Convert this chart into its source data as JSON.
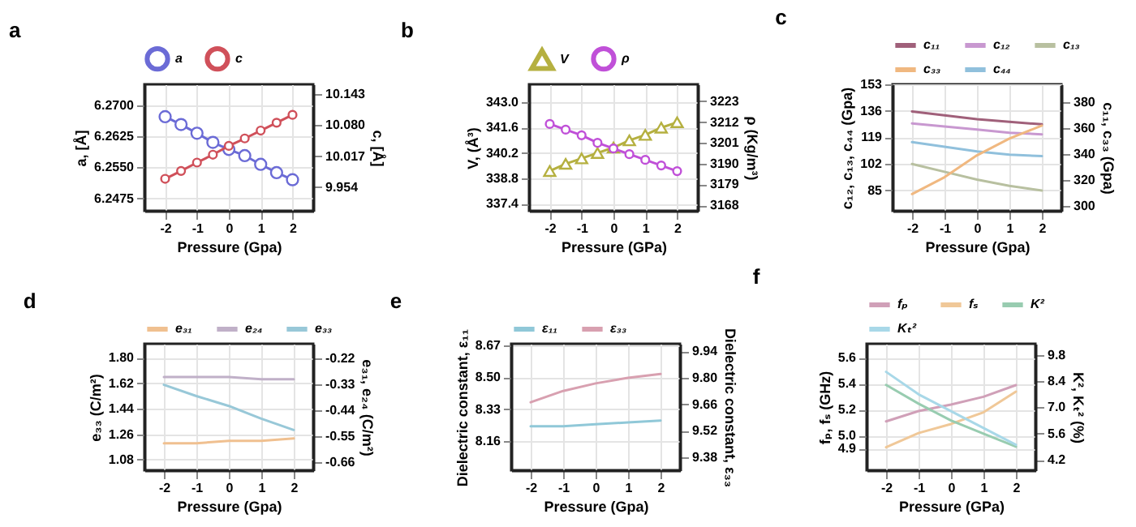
{
  "chart_data": [
    {
      "type": "line",
      "title": "a",
      "xlabel": "Pressure (Gpa)",
      "ylabel": "a, [Å]",
      "y2label": "c, [Å]",
      "x": [
        -2,
        -1.5,
        -1,
        -0.5,
        0,
        0.5,
        1,
        1.5,
        2
      ],
      "xlim": [
        -2.65,
        2.65
      ],
      "xticks": [
        -2,
        -1,
        0,
        1,
        2
      ],
      "ylim": [
        6.2445,
        6.275
      ],
      "yticks": [
        6.2475,
        {
          "value": 6.255,
          "label": "6.2550"
        },
        6.2625,
        {
          "value": 6.27,
          "label": "6.2700"
        }
      ],
      "y2lim": [
        9.906,
        10.163
      ],
      "y2ticks": [
        9.954,
        10.017,
        {
          "value": 10.08,
          "label": "10.080"
        },
        10.143
      ],
      "grid": true,
      "legend": "top",
      "series": [
        {
          "name": "a",
          "color": "#6b6bd6",
          "marker": "circle",
          "values": [
            6.2672,
            6.2653,
            6.2632,
            6.261,
            6.2593,
            6.2578,
            6.2557,
            6.2537,
            6.252
          ]
        },
        {
          "name": "c",
          "color": "#d0505a",
          "marker": "circle",
          "axis": "y2",
          "values": [
            9.971,
            9.987,
            10.004,
            10.02,
            10.038,
            10.053,
            10.069,
            10.085,
            10.101
          ]
        }
      ]
    },
    {
      "type": "line",
      "title": "b",
      "xlabel": "Pressure (GPa)",
      "ylabel": "V, (Å³)",
      "y2label": "ρ (Kg/m³)",
      "x": [
        -2,
        -1.5,
        -1,
        -0.5,
        0,
        0.5,
        1,
        1.5,
        2
      ],
      "xlim": [
        -2.65,
        2.65
      ],
      "xticks": [
        -2,
        -1,
        0,
        1,
        2
      ],
      "ylim": [
        337.0,
        344.0
      ],
      "yticks": [
        337.4,
        338.8,
        340.2,
        341.6,
        {
          "value": 343,
          "label": "343.0"
        }
      ],
      "y2lim": [
        3165,
        3232
      ],
      "y2ticks": [
        3168,
        3179,
        3190,
        3201,
        3212,
        3223
      ],
      "grid": true,
      "legend": "top",
      "series": [
        {
          "name": "V",
          "color": "#b5b040",
          "marker": "triangle",
          "values": [
            339.2,
            339.6,
            339.9,
            340.2,
            340.5,
            340.9,
            341.2,
            341.6,
            341.9
          ]
        },
        {
          "name": "ρ",
          "color": "#c050d8",
          "marker": "circle",
          "axis": "y2",
          "values": [
            3211,
            3208,
            3205,
            3201,
            3198,
            3195,
            3192,
            3189,
            3186
          ]
        }
      ]
    },
    {
      "type": "line",
      "title": "c",
      "xlabel": "Pressure (Gpa)",
      "ylabel": "c₁₂, c₁₃, c₄₄ (Gpa)",
      "y2label": "c₁₁, c₃₃ (Gpa)",
      "x": [
        -2,
        -1,
        0,
        1,
        2
      ],
      "xlim": [
        -2.6,
        2.6
      ],
      "xticks": [
        -2,
        -1,
        0,
        1,
        2
      ],
      "ylim": [
        72,
        153
      ],
      "yticks": [
        85,
        102,
        119,
        136,
        153
      ],
      "y2lim": [
        296,
        394
      ],
      "y2ticks": [
        300,
        320,
        340,
        360,
        380
      ],
      "grid": true,
      "legend": "top",
      "series": [
        {
          "name": "c₁₁",
          "color": "#a0607a",
          "axis": "y2",
          "values": [
            373,
            370,
            367,
            365,
            363
          ]
        },
        {
          "name": "c₁₂",
          "color": "#c898d0",
          "values": [
            128,
            126,
            124,
            122,
            121
          ]
        },
        {
          "name": "c₁₃",
          "color": "#b8c0a0",
          "values": [
            102,
            97,
            92,
            88,
            85
          ]
        },
        {
          "name": "c₃₃",
          "color": "#f0b880",
          "axis": "y2",
          "values": [
            309,
            322,
            339,
            352,
            362
          ]
        },
        {
          "name": "c₄₄",
          "color": "#90c0dc",
          "values": [
            116,
            113,
            110,
            108,
            107
          ]
        }
      ]
    },
    {
      "type": "line",
      "title": "d",
      "xlabel": "Pressure (Gpa)",
      "ylabel": "e₃₃ (C/m²)",
      "y2label": "e₃₁, e₂₄ (C/m²)",
      "x": [
        -2,
        -1,
        0,
        1,
        2
      ],
      "xlim": [
        -2.6,
        2.6
      ],
      "xticks": [
        -2,
        -1,
        0,
        1,
        2
      ],
      "ylim": [
        1.005,
        1.9
      ],
      "yticks": [
        1.08,
        1.26,
        1.44,
        1.62,
        {
          "value": 1.8,
          "label": "1.80"
        }
      ],
      "y2lim": [
        -0.694,
        -0.16
      ],
      "y2ticks": [
        -0.66,
        -0.55,
        -0.44,
        -0.33,
        -0.22
      ],
      "grid": true,
      "legend": "top",
      "series": [
        {
          "name": "e₃₁",
          "color": "#f0c090",
          "axis": "y2",
          "values": [
            -0.58,
            -0.58,
            -0.57,
            -0.57,
            -0.56
          ]
        },
        {
          "name": "e₂₄",
          "color": "#c0b0c8",
          "axis": "y2",
          "values": [
            -0.3,
            -0.3,
            -0.3,
            -0.31,
            -0.31
          ]
        },
        {
          "name": "e₃₃",
          "color": "#98c8d8",
          "values": [
            1.61,
            1.53,
            1.46,
            1.37,
            1.29
          ]
        }
      ]
    },
    {
      "type": "line",
      "title": "e",
      "xlabel": "Pressure (Gpa)",
      "ylabel": "Dielectric constant, ε₁₁",
      "y2label": "Dielectric constant, ε₃₃",
      "x": [
        -2,
        -1,
        0,
        1,
        2
      ],
      "xlim": [
        -2.6,
        2.6
      ],
      "xticks": [
        -2,
        -1,
        0,
        1,
        2
      ],
      "ylim": [
        8.006,
        8.678
      ],
      "yticks": [
        8.16,
        8.33,
        {
          "value": 8.5,
          "label": "8.50"
        },
        8.67
      ],
      "y2lim": [
        9.31,
        9.98
      ],
      "y2ticks": [
        9.38,
        9.52,
        9.66,
        {
          "value": 9.8,
          "label": "9.80"
        },
        9.94
      ],
      "grid": true,
      "legend": "top",
      "series": [
        {
          "name": "ε₁₁",
          "color": "#90c8d8",
          "values": [
            8.24,
            8.24,
            8.25,
            8.26,
            8.27
          ]
        },
        {
          "name": "ε₃₃",
          "color": "#d8a0b0",
          "axis": "y2",
          "values": [
            9.67,
            9.73,
            9.77,
            9.8,
            9.82
          ]
        }
      ]
    },
    {
      "type": "line",
      "title": "f",
      "xlabel": "Pressure (GPa)",
      "ylabel": "fₚ, fₛ (GHz)",
      "y2label": "K², Kₜ² (%)",
      "x": [
        -2,
        -1,
        0,
        1,
        2
      ],
      "xlim": [
        -2.6,
        2.6
      ],
      "xticks": [
        -2,
        -1,
        0,
        1,
        2
      ],
      "ylim": [
        4.733,
        5.709
      ],
      "yticks": [
        4.9,
        {
          "value": 5,
          "label": "5.0"
        },
        5.2,
        5.4,
        5.6
      ],
      "y2lim": [
        3.64,
        10.4
      ],
      "y2ticks": [
        4.2,
        5.6,
        {
          "value": 7,
          "label": "7.0"
        },
        8.4,
        9.8
      ],
      "grid": true,
      "legend": "top",
      "series": [
        {
          "name": "fₚ",
          "color": "#d0a0b8",
          "values": [
            5.11,
            5.19,
            5.24,
            5.3,
            5.39
          ]
        },
        {
          "name": "fₛ",
          "color": "#f0c898",
          "values": [
            4.91,
            5.02,
            5.09,
            5.18,
            5.34
          ]
        },
        {
          "name": "K²",
          "color": "#98ccb0",
          "axis": "y2",
          "values": [
            8.2,
            7.2,
            6.3,
            5.6,
            4.9
          ]
        },
        {
          "name": "Kₜ²",
          "color": "#a8d8e8",
          "axis": "y2",
          "values": [
            8.9,
            7.7,
            6.8,
            5.9,
            5.0
          ]
        }
      ]
    }
  ]
}
